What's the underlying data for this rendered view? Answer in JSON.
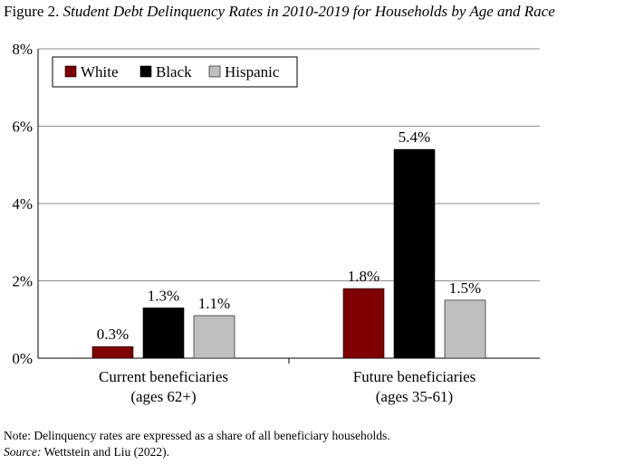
{
  "title": {
    "lead": "Figure 2.",
    "main": "Student Debt Delinquency Rates in 2010-2019 for Households by Age and Race"
  },
  "chart_data": {
    "type": "bar",
    "categories": [
      [
        "Current beneficiaries",
        "(ages 62+)"
      ],
      [
        "Future beneficiaries",
        "(ages 35-61)"
      ]
    ],
    "series": [
      {
        "name": "White",
        "color": "#7f0000",
        "values": [
          0.3,
          1.8
        ],
        "labels": [
          "0.3%",
          "1.8%"
        ]
      },
      {
        "name": "Black",
        "color": "#000000",
        "values": [
          1.3,
          5.4
        ],
        "labels": [
          "1.3%",
          "5.4%"
        ]
      },
      {
        "name": "Hispanic",
        "color": "#bfbfbf",
        "values": [
          1.1,
          1.5
        ],
        "labels": [
          "1.1%",
          "1.5%"
        ]
      }
    ],
    "ylim": [
      0,
      8
    ],
    "yticks": [
      0,
      2,
      4,
      6,
      8
    ],
    "ytick_labels": [
      "0%",
      "2%",
      "4%",
      "6%",
      "8%"
    ],
    "grid": true,
    "legend_position": "top-left"
  },
  "note": {
    "text": "Note: Delinquency rates are expressed as a share of all beneficiary households.",
    "source_label": "Source:",
    "source_text": "Wettstein and Liu (2022)."
  }
}
